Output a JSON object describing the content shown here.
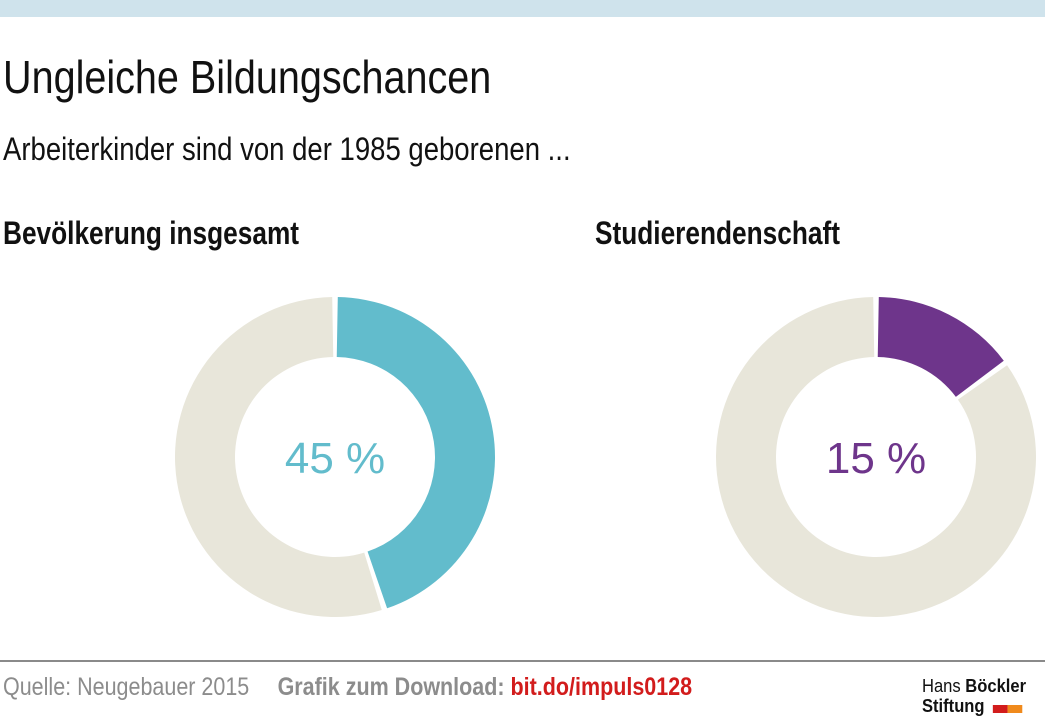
{
  "header": {
    "title": "Ungleiche Bildungschancen",
    "subtitle": "Arbeiterkinder sind von der 1985 geborenen ..."
  },
  "chart_data": [
    {
      "type": "pie",
      "title": "Bevölkerung insgesamt",
      "value_label": "45 %",
      "slices": [
        {
          "value": 45,
          "color": "#62bccc"
        },
        {
          "value": 55,
          "color": "#e8e6da"
        }
      ]
    },
    {
      "type": "pie",
      "title": "Studierendenschaft",
      "value_label": "15 %",
      "slices": [
        {
          "value": 15,
          "color": "#6e358b"
        },
        {
          "value": 85,
          "color": "#e8e6da"
        }
      ]
    }
  ],
  "colors": {
    "accent_1": "#62bccc",
    "accent_2": "#6e358b",
    "remainder": "#e8e6da",
    "link": "#d21c1c"
  },
  "footer": {
    "source": "Quelle: Neugebauer 2015",
    "download_label": "Grafik zum Download:",
    "download_link": "bit.do/impuls0128"
  },
  "logo": {
    "line1_regular": "Hans",
    "line1_bold": "Böckler",
    "line2": "Stiftung"
  }
}
